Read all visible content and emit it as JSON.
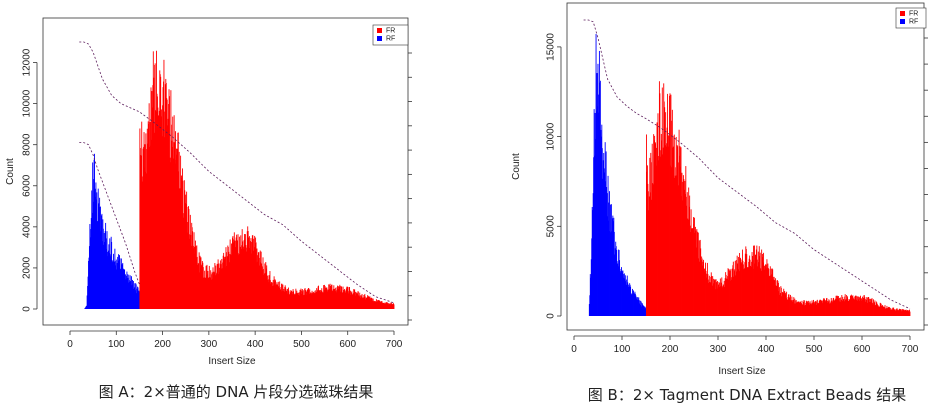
{
  "chart_data": [
    {
      "type": "bar",
      "caption": "图 A：2×普通的 DNA 片段分选磁珠结果",
      "xlabel": "Insert Size",
      "ylabel": "Count",
      "xlim": [
        0,
        700
      ],
      "ylim": [
        0,
        13000
      ],
      "xticks": [
        0,
        100,
        200,
        300,
        400,
        500,
        600,
        700
      ],
      "yticks": [
        0,
        2000,
        4000,
        6000,
        8000,
        10000,
        12000
      ],
      "legend": {
        "position": "top-right",
        "entries": [
          {
            "name": "FR",
            "color": "#ff0000"
          },
          {
            "name": "RF",
            "color": "#0000ff"
          }
        ]
      },
      "series": [
        {
          "name": "RF",
          "color": "#0000ff",
          "x": [
            30,
            35,
            40,
            45,
            50,
            55,
            60,
            65,
            70,
            75,
            80,
            85,
            90,
            95,
            100,
            105,
            110,
            115,
            120,
            125,
            130,
            135,
            140,
            145,
            150
          ],
          "values": [
            0,
            200,
            3200,
            6500,
            8000,
            7200,
            6000,
            5300,
            4800,
            4400,
            4000,
            3700,
            3400,
            3100,
            2900,
            2700,
            2500,
            2300,
            2100,
            1900,
            1700,
            1500,
            1300,
            1100,
            900
          ]
        },
        {
          "name": "FR",
          "color": "#ff0000",
          "x": [
            150,
            155,
            160,
            165,
            170,
            175,
            180,
            185,
            190,
            195,
            200,
            205,
            210,
            215,
            220,
            225,
            230,
            240,
            250,
            260,
            270,
            280,
            290,
            300,
            310,
            320,
            330,
            340,
            350,
            360,
            370,
            380,
            390,
            400,
            410,
            420,
            430,
            440,
            450,
            460,
            480,
            500,
            520,
            540,
            560,
            580,
            600,
            620,
            640,
            660,
            680,
            700
          ],
          "values": [
            10300,
            9000,
            9200,
            9600,
            11800,
            12000,
            12800,
            12600,
            12900,
            12700,
            12900,
            12500,
            11800,
            11000,
            10500,
            10000,
            9200,
            7500,
            6000,
            4500,
            3500,
            2600,
            2200,
            2100,
            2200,
            2500,
            2900,
            3300,
            3700,
            3900,
            4000,
            4100,
            3900,
            3600,
            3000,
            2400,
            1900,
            1600,
            1400,
            1200,
            1000,
            1000,
            1100,
            1200,
            1250,
            1200,
            1100,
            900,
            700,
            500,
            350,
            300
          ]
        }
      ],
      "cumulative_line": {
        "style": "dashed",
        "x": [
          20,
          30,
          40,
          50,
          70,
          90,
          110,
          130,
          150,
          180,
          220,
          260,
          300,
          340,
          380,
          420,
          460,
          500,
          540,
          580,
          620,
          660,
          700
        ],
        "values": [
          13000,
          13000,
          12900,
          12500,
          11200,
          10400,
          10000,
          9800,
          9600,
          9100,
          8400,
          7600,
          6700,
          6000,
          5300,
          4600,
          4100,
          3300,
          2600,
          1900,
          1200,
          600,
          300
        ]
      },
      "reference_line": {
        "style": "dashed",
        "x": [
          20,
          30,
          40,
          50,
          60,
          70,
          80,
          90,
          100,
          110,
          120,
          130,
          140,
          150
        ],
        "values": [
          8100,
          8100,
          8000,
          7500,
          6800,
          6200,
          5600,
          5000,
          4400,
          3800,
          3200,
          2500,
          1800,
          1200
        ]
      }
    },
    {
      "type": "bar",
      "caption": "图 B：2×  Tagment DNA Extract Beads 结果",
      "xlabel": "Insert Size",
      "ylabel": "Count",
      "xlim": [
        0,
        700
      ],
      "ylim": [
        0,
        16500
      ],
      "xticks": [
        0,
        100,
        200,
        300,
        400,
        500,
        600,
        700
      ],
      "yticks": [
        0,
        5000,
        10000,
        15000
      ],
      "legend": {
        "position": "top-right",
        "entries": [
          {
            "name": "FR",
            "color": "#ff0000"
          },
          {
            "name": "RF",
            "color": "#0000ff"
          }
        ]
      },
      "series": [
        {
          "name": "RF",
          "color": "#0000ff",
          "x": [
            30,
            35,
            40,
            45,
            50,
            55,
            60,
            65,
            70,
            75,
            80,
            85,
            90,
            95,
            100,
            105,
            110,
            115,
            120,
            125,
            130,
            135,
            140,
            145,
            150
          ],
          "values": [
            0,
            4000,
            11000,
            16000,
            16500,
            13500,
            11000,
            9500,
            8000,
            7000,
            6000,
            5000,
            4300,
            3700,
            3200,
            2700,
            2300,
            2000,
            1700,
            1400,
            1200,
            1000,
            800,
            600,
            500
          ]
        },
        {
          "name": "FR",
          "color": "#ff0000",
          "x": [
            150,
            155,
            160,
            165,
            170,
            175,
            180,
            185,
            190,
            195,
            200,
            205,
            210,
            215,
            220,
            225,
            230,
            240,
            250,
            260,
            270,
            280,
            290,
            300,
            310,
            320,
            330,
            340,
            350,
            360,
            370,
            380,
            390,
            400,
            410,
            420,
            430,
            440,
            450,
            460,
            480,
            500,
            520,
            540,
            560,
            580,
            600,
            620,
            640,
            660,
            680,
            700
          ],
          "values": [
            11000,
            8800,
            9600,
            10600,
            12200,
            13200,
            13400,
            13200,
            13600,
            13100,
            12800,
            12400,
            11700,
            11000,
            10500,
            9800,
            9200,
            7500,
            6000,
            4600,
            3600,
            2700,
            2300,
            2200,
            2300,
            2700,
            3100,
            3500,
            3800,
            3950,
            4000,
            4000,
            3800,
            3400,
            2800,
            2200,
            1700,
            1400,
            1200,
            1000,
            900,
            900,
            1000,
            1100,
            1250,
            1300,
            1200,
            1000,
            700,
            500,
            400,
            350
          ]
        }
      ],
      "cumulative_line": {
        "style": "dashed",
        "x": [
          20,
          30,
          40,
          50,
          70,
          90,
          110,
          130,
          150,
          180,
          220,
          260,
          300,
          340,
          380,
          420,
          460,
          500,
          540,
          580,
          620,
          660,
          700
        ],
        "values": [
          16500,
          16500,
          16400,
          15500,
          13200,
          12200,
          11700,
          11300,
          11000,
          10500,
          9700,
          8800,
          7700,
          6900,
          6100,
          5200,
          4600,
          3700,
          3000,
          2300,
          1600,
          900,
          400
        ]
      },
      "reference_line": null
    }
  ]
}
